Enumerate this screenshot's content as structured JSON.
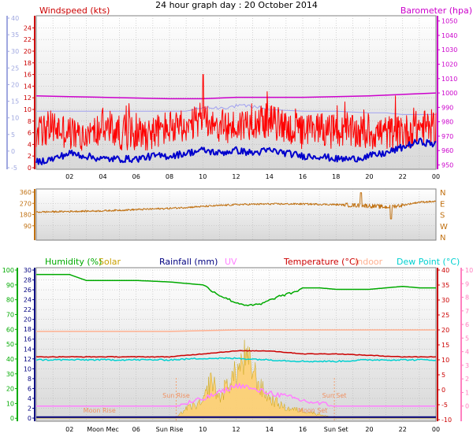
{
  "title": "24 hour graph day : 20 October 2014",
  "chart_data": [
    {
      "type": "line",
      "panel": "wind-baro",
      "title": "",
      "ylabel_left": "Windspeed (kts)",
      "ylabel_right": "Barometer (hpa)",
      "ylim_left": [
        0,
        25
      ],
      "yticks_left": [
        0,
        2,
        4,
        6,
        8,
        10,
        12,
        14,
        16,
        18,
        20,
        22,
        24
      ],
      "ylim_aux": [
        -5,
        40
      ],
      "yticks_aux": [
        -5,
        0,
        5,
        10,
        15,
        20,
        25,
        30,
        35,
        40
      ],
      "ylim_right": [
        947,
        1052
      ],
      "yticks_right": [
        950,
        960,
        970,
        980,
        990,
        1000,
        1010,
        1020,
        1030,
        1040,
        1050
      ],
      "xlim": [
        0,
        24
      ],
      "xtick_labels": [
        "02",
        "04",
        "06",
        "08",
        "10",
        "12",
        "14",
        "16",
        "18",
        "20",
        "22",
        "00"
      ],
      "xtick_hours": [
        2,
        4,
        6,
        8,
        10,
        12,
        14,
        16,
        18,
        20,
        22,
        24
      ],
      "series": [
        {
          "name": "Barometer (hpa)",
          "color": "#cc00cc",
          "x": [
            0,
            2,
            4,
            6,
            8,
            10,
            11,
            12,
            14,
            16,
            18,
            20,
            22,
            23,
            24
          ],
          "y": [
            998,
            997.5,
            997,
            996.5,
            996,
            996,
            996.5,
            997,
            997,
            997,
            997.5,
            998,
            999,
            999.5,
            1000
          ]
        },
        {
          "name": "Wind gust",
          "color": "#ff0000",
          "x": [
            0,
            1,
            2,
            3,
            4,
            5,
            6,
            7,
            8,
            9,
            10,
            11,
            12,
            13,
            14,
            15,
            16,
            17,
            18,
            19,
            20,
            21,
            22,
            23,
            24
          ],
          "y": [
            6,
            7,
            6,
            5,
            7,
            6,
            6,
            6,
            7,
            6,
            9,
            7,
            7,
            8,
            8,
            7,
            6,
            7,
            6,
            6,
            6,
            6,
            6,
            7,
            7
          ]
        },
        {
          "name": "Wind average",
          "color": "#0000cc",
          "x": [
            0,
            1,
            2,
            3,
            4,
            5,
            6,
            7,
            8,
            9,
            10,
            11,
            12,
            13,
            14,
            15,
            16,
            17,
            18,
            19,
            20,
            21,
            22,
            23,
            24
          ],
          "y": [
            1,
            1.5,
            2.5,
            2,
            1.5,
            1.5,
            1.5,
            2,
            2,
            2.5,
            3,
            2.5,
            3,
            2.5,
            3,
            2.5,
            2,
            2,
            1.5,
            1.5,
            2,
            2.5,
            3.5,
            4.5,
            4
          ]
        },
        {
          "name": "Wind chill",
          "color": "#a0a0f0",
          "x": [
            0,
            2,
            4,
            6,
            8,
            9,
            10,
            11,
            12,
            13,
            14,
            16,
            18,
            20,
            21,
            22,
            23,
            24
          ],
          "y": [
            12,
            12,
            12,
            12,
            12,
            12,
            13,
            13,
            13.5,
            13.5,
            12.5,
            12,
            12,
            11.5,
            11.5,
            11,
            11,
            11
          ]
        }
      ]
    },
    {
      "type": "line",
      "panel": "direction",
      "title": "",
      "ylim": [
        0,
        360
      ],
      "yticks": [
        0,
        90,
        180,
        270,
        360
      ],
      "ylabels_right": [
        "N",
        "W",
        "S",
        "E",
        "N"
      ],
      "xlim": [
        0,
        24
      ],
      "series": [
        {
          "name": "Wind direction",
          "color": "#c07010",
          "x": [
            0,
            2,
            4,
            6,
            8,
            10,
            12,
            14,
            16,
            18,
            19,
            20,
            21,
            22,
            23,
            24
          ],
          "y": [
            200,
            205,
            210,
            220,
            230,
            245,
            260,
            265,
            265,
            260,
            255,
            250,
            240,
            255,
            280,
            285
          ]
        }
      ]
    },
    {
      "type": "line",
      "panel": "temperature-humidity",
      "title": "",
      "legend": [
        "Humidity (%)",
        "Solar",
        "Rainfall (mm)",
        "UV",
        "Temperature (°C)",
        "Indoor",
        "Dew Point (°C)"
      ],
      "legend_colors": [
        "#00aa00",
        "#c8a000",
        "#000080",
        "#ff80ff",
        "#cc0000",
        "#ffb090",
        "#00d0d0"
      ],
      "axis_humidity": {
        "ylim": [
          -2,
          100
        ],
        "yticks": [
          0,
          10,
          20,
          30,
          40,
          50,
          60,
          70,
          80,
          90,
          100
        ]
      },
      "axis_rain": {
        "ylim": [
          0,
          30
        ],
        "yticks": [
          0,
          2,
          4,
          6,
          8,
          10,
          12,
          14,
          16,
          18,
          20,
          22,
          24,
          26,
          28,
          30
        ]
      },
      "axis_temp": {
        "ylim": [
          -10,
          40
        ],
        "yticks": [
          -10,
          -5,
          0,
          5,
          10,
          15,
          20,
          25,
          30,
          35,
          40
        ]
      },
      "axis_uv": {
        "ylim": [
          -1,
          10
        ],
        "yticks": [
          0,
          1,
          2,
          3,
          4,
          5,
          6,
          7,
          8,
          9,
          10
        ]
      },
      "xlim": [
        0,
        24
      ],
      "xtick_labels": [
        "02",
        "Moon Mec",
        "06",
        "Sun Rise",
        "10",
        "12",
        "14",
        "16",
        "Sun Set",
        "20",
        "22",
        "00"
      ],
      "annotations": [
        {
          "text": "Sun Rise",
          "hour": 8.4
        },
        {
          "text": "Sun Set",
          "hour": 17.9
        },
        {
          "text": "Moon Rise",
          "hour": 3.8
        },
        {
          "text": "Moon Set",
          "hour": 16.6
        }
      ],
      "series": [
        {
          "name": "Humidity (%)",
          "color": "#00aa00",
          "x": [
            0,
            2,
            3,
            4,
            6,
            8,
            10,
            11,
            12,
            12.8,
            13.5,
            14.5,
            15.5,
            16,
            17,
            18,
            20,
            22,
            23,
            24
          ],
          "y": [
            97,
            97,
            93,
            93,
            93,
            92,
            90,
            83,
            78,
            76,
            77,
            82,
            85,
            88,
            88,
            87,
            87,
            89,
            88,
            88
          ]
        },
        {
          "name": "Temperature (°C)",
          "color": "#cc0000",
          "x": [
            0,
            2,
            4,
            6,
            8,
            10,
            11,
            12,
            13,
            14,
            15,
            16,
            18,
            20,
            22,
            24
          ],
          "y": [
            11,
            11,
            11,
            11,
            11,
            12,
            12.5,
            13,
            13,
            13,
            12.5,
            12,
            12,
            11.5,
            11,
            11
          ]
        },
        {
          "name": "Indoor",
          "color": "#ffb090",
          "x": [
            0,
            4,
            8,
            12,
            16,
            20,
            24
          ],
          "y": [
            19.5,
            19.5,
            19.5,
            20,
            20,
            20,
            20
          ]
        },
        {
          "name": "Dew Point (°C)",
          "color": "#00d0d0",
          "x": [
            0,
            2,
            4,
            6,
            8,
            10,
            12,
            14,
            16,
            18,
            20,
            22,
            24
          ],
          "y": [
            10,
            10,
            10,
            10,
            10,
            10.5,
            10.5,
            10,
            9.5,
            9.5,
            10,
            10,
            10
          ]
        },
        {
          "name": "Rainfall (mm)",
          "color": "#000080",
          "x": [
            0,
            6,
            12,
            18,
            24
          ],
          "y": [
            0.2,
            0.2,
            0.2,
            0.2,
            0.2
          ]
        },
        {
          "name": "Solar",
          "color": "#c8a000",
          "fill": "#ffd070",
          "x": [
            0,
            8.4,
            9,
            10,
            10.5,
            11,
            11.5,
            12,
            12.5,
            13,
            13.5,
            14,
            14.5,
            15,
            16,
            17,
            17.9,
            24
          ],
          "y": [
            0,
            0,
            2,
            3,
            8,
            4,
            7,
            9,
            12,
            10,
            6,
            4,
            3,
            2,
            1.5,
            0.8,
            0,
            0
          ]
        },
        {
          "name": "UV",
          "color": "#ff80ff",
          "x": [
            0,
            8.4,
            10,
            11,
            12,
            12.5,
            13,
            14,
            15,
            16,
            17.9,
            24
          ],
          "y": [
            0,
            0,
            0.5,
            1,
            1.5,
            1.5,
            1.2,
            1,
            0.7,
            0.4,
            0,
            0
          ]
        }
      ]
    }
  ]
}
